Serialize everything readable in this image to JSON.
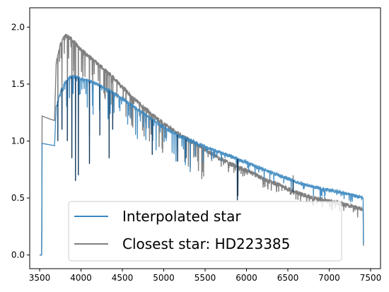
{
  "chart_data": {
    "type": "line",
    "title": "",
    "xlabel": "",
    "ylabel": "",
    "xlim": [
      3380,
      7620
    ],
    "ylim": [
      -0.12,
      2.17
    ],
    "xticks": [
      3500,
      4000,
      4500,
      5000,
      5500,
      6000,
      6500,
      7000,
      7500
    ],
    "yticks": [
      0.0,
      0.5,
      1.0,
      1.5,
      2.0
    ],
    "xtick_labels": [
      "3500",
      "4000",
      "4500",
      "5000",
      "5500",
      "6000",
      "6500",
      "7000",
      "7500"
    ],
    "ytick_labels": [
      "0.0",
      "0.5",
      "1.0",
      "1.5",
      "2.0"
    ],
    "grid": false,
    "legend_position": "bottom-center",
    "series": [
      {
        "name": "Closest star: HD223385",
        "color": "#808080",
        "continuum": [
          [
            3500,
            0.0
          ],
          [
            3525,
            0.0
          ],
          [
            3530,
            1.22
          ],
          [
            3600,
            1.2
          ],
          [
            3680,
            1.18
          ],
          [
            3700,
            1.68
          ],
          [
            3750,
            1.85
          ],
          [
            3800,
            1.92
          ],
          [
            3850,
            1.92
          ],
          [
            3900,
            1.88
          ],
          [
            4000,
            1.8
          ],
          [
            4200,
            1.68
          ],
          [
            4400,
            1.55
          ],
          [
            4600,
            1.4
          ],
          [
            4800,
            1.27
          ],
          [
            5000,
            1.15
          ],
          [
            5200,
            1.05
          ],
          [
            5400,
            0.97
          ],
          [
            5600,
            0.88
          ],
          [
            5800,
            0.8
          ],
          [
            6000,
            0.74
          ],
          [
            6200,
            0.67
          ],
          [
            6400,
            0.61
          ],
          [
            6600,
            0.55
          ],
          [
            6800,
            0.5
          ],
          [
            7000,
            0.47
          ],
          [
            7200,
            0.44
          ],
          [
            7410,
            0.4
          ],
          [
            7415,
            0.0
          ]
        ],
        "lines": [
          [
            3720,
            1.3
          ],
          [
            3770,
            1.45
          ],
          [
            3835,
            1.35
          ],
          [
            3889,
            1.15
          ],
          [
            3933,
            1.0
          ],
          [
            3968,
            0.95
          ],
          [
            4102,
            1.05
          ],
          [
            4227,
            1.2
          ],
          [
            4340,
            1.12
          ],
          [
            4383,
            1.2
          ],
          [
            4861,
            1.0
          ],
          [
            5167,
            0.9
          ],
          [
            5270,
            0.92
          ],
          [
            5890,
            0.5
          ],
          [
            5896,
            0.55
          ],
          [
            6563,
            0.7
          ]
        ]
      },
      {
        "name": "Interpolated star",
        "color": "#3a87c0",
        "continuum": [
          [
            3500,
            0.0
          ],
          [
            3525,
            0.0
          ],
          [
            3530,
            0.98
          ],
          [
            3600,
            0.97
          ],
          [
            3680,
            0.96
          ],
          [
            3700,
            1.3
          ],
          [
            3750,
            1.43
          ],
          [
            3800,
            1.5
          ],
          [
            3850,
            1.55
          ],
          [
            3900,
            1.57
          ],
          [
            4000,
            1.55
          ],
          [
            4200,
            1.5
          ],
          [
            4400,
            1.42
          ],
          [
            4600,
            1.32
          ],
          [
            4800,
            1.22
          ],
          [
            5000,
            1.12
          ],
          [
            5200,
            1.04
          ],
          [
            5400,
            0.98
          ],
          [
            5600,
            0.92
          ],
          [
            5800,
            0.87
          ],
          [
            6000,
            0.81
          ],
          [
            6200,
            0.75
          ],
          [
            6400,
            0.7
          ],
          [
            6600,
            0.64
          ],
          [
            6800,
            0.6
          ],
          [
            7000,
            0.57
          ],
          [
            7200,
            0.54
          ],
          [
            7410,
            0.5
          ],
          [
            7415,
            0.0
          ]
        ],
        "lines": [
          [
            3720,
            1.0
          ],
          [
            3770,
            1.1
          ],
          [
            3835,
            1.0
          ],
          [
            3889,
            0.85
          ],
          [
            3933,
            0.65
          ],
          [
            3968,
            0.7
          ],
          [
            4102,
            0.8
          ],
          [
            4227,
            1.05
          ],
          [
            4340,
            0.85
          ],
          [
            4383,
            1.1
          ],
          [
            4861,
            0.88
          ],
          [
            5167,
            0.82
          ],
          [
            5270,
            0.85
          ],
          [
            5890,
            0.48
          ],
          [
            5896,
            0.52
          ],
          [
            6563,
            0.55
          ]
        ]
      }
    ]
  }
}
